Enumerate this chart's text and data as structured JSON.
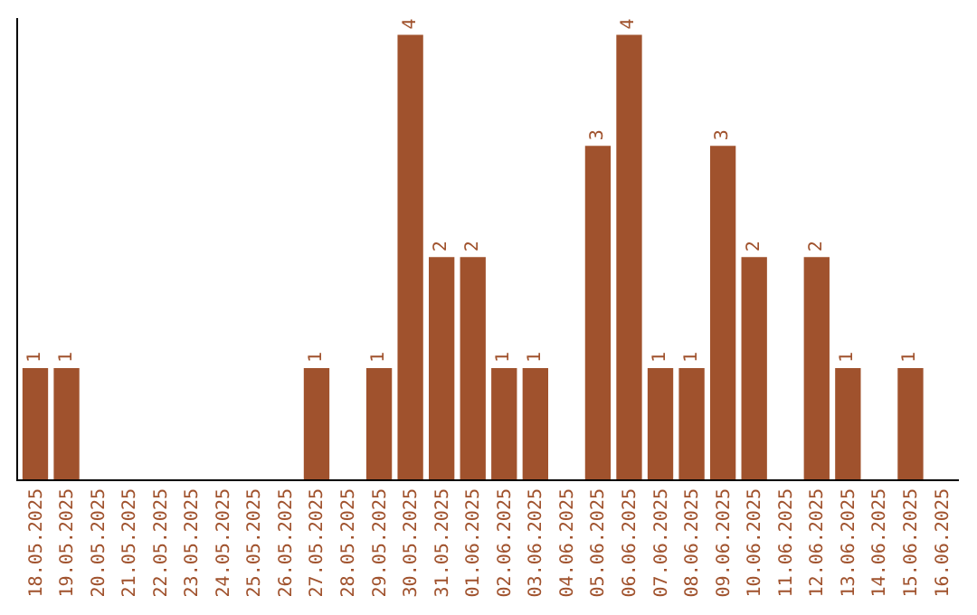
{
  "chart_data": {
    "type": "bar",
    "categories": [
      "18.05.2025",
      "19.05.2025",
      "20.05.2025",
      "21.05.2025",
      "22.05.2025",
      "23.05.2025",
      "24.05.2025",
      "25.05.2025",
      "26.05.2025",
      "27.05.2025",
      "28.05.2025",
      "29.05.2025",
      "30.05.2025",
      "31.05.2025",
      "01.06.2025",
      "02.06.2025",
      "03.06.2025",
      "04.06.2025",
      "05.06.2025",
      "06.06.2025",
      "07.06.2025",
      "08.06.2025",
      "09.06.2025",
      "10.06.2025",
      "11.06.2025",
      "12.06.2025",
      "13.06.2025",
      "14.06.2025",
      "15.06.2025",
      "16.06.2025"
    ],
    "values": [
      1,
      1,
      0,
      0,
      0,
      0,
      0,
      0,
      0,
      1,
      0,
      1,
      4,
      2,
      2,
      1,
      1,
      0,
      3,
      4,
      1,
      1,
      3,
      2,
      0,
      2,
      1,
      0,
      1,
      0
    ],
    "value_labels": [
      "1",
      "1",
      null,
      null,
      null,
      null,
      null,
      null,
      null,
      "1",
      null,
      "1",
      "4",
      "2",
      "2",
      "1",
      "1",
      null,
      "3",
      "4",
      "1",
      "1",
      "3",
      "2",
      null,
      "2",
      "1",
      null,
      "1",
      null
    ],
    "color": "#a0522d",
    "ylim": [
      0,
      4.15
    ],
    "tick_labels": "x"
  }
}
